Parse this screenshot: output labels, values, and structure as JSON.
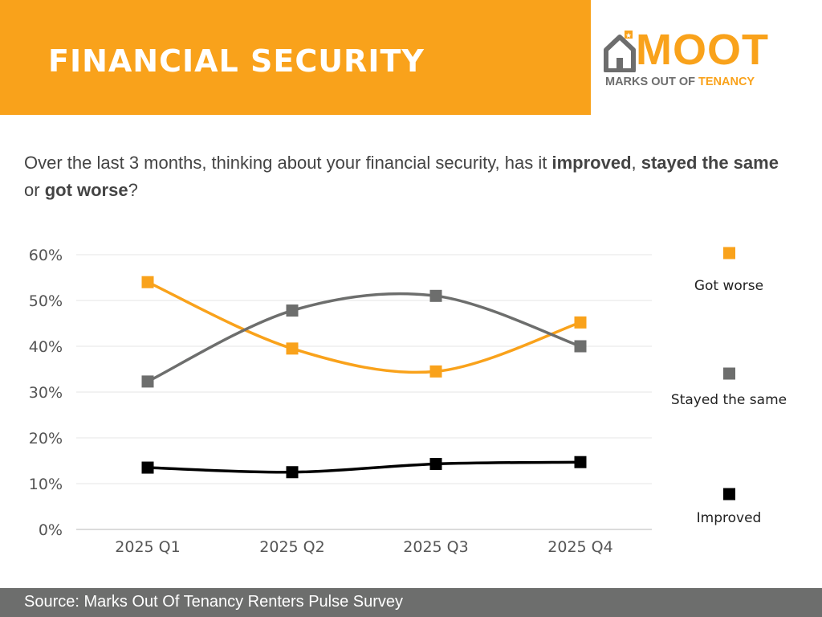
{
  "header": {
    "title": "FINANCIAL SECURITY"
  },
  "logo": {
    "wordmark": "MOOT",
    "tagline_part1": "MARKS OUT OF ",
    "tagline_part2": "TENANCY"
  },
  "question": {
    "part1": "Over the last 3 months, thinking about your financial security, has it ",
    "bold1": "improved",
    "part2": ", ",
    "bold2": "stayed the same",
    "part3": " or ",
    "bold3": "got worse",
    "part4": "?"
  },
  "chart_data": {
    "type": "line",
    "categories": [
      "2025 Q1",
      "2025 Q2",
      "2025 Q3",
      "2025 Q4"
    ],
    "y_tick_labels": [
      "0%",
      "10%",
      "20%",
      "30%",
      "40%",
      "50%",
      "60%"
    ],
    "ylim": [
      0,
      60
    ],
    "grid": true,
    "smooth": true,
    "legend_position": "right",
    "series": [
      {
        "name": "Got worse",
        "color": "#f9a21b",
        "values": [
          54,
          39.5,
          34.5,
          45.2
        ]
      },
      {
        "name": "Stayed the same",
        "color": "#6d6e6d",
        "values": [
          32.3,
          47.8,
          51,
          40
        ]
      },
      {
        "name": "Improved",
        "color": "#000000",
        "values": [
          13.5,
          12.5,
          14.3,
          14.7
        ]
      }
    ]
  },
  "footer": {
    "source": "Source: Marks Out Of Tenancy Renters Pulse Survey"
  }
}
